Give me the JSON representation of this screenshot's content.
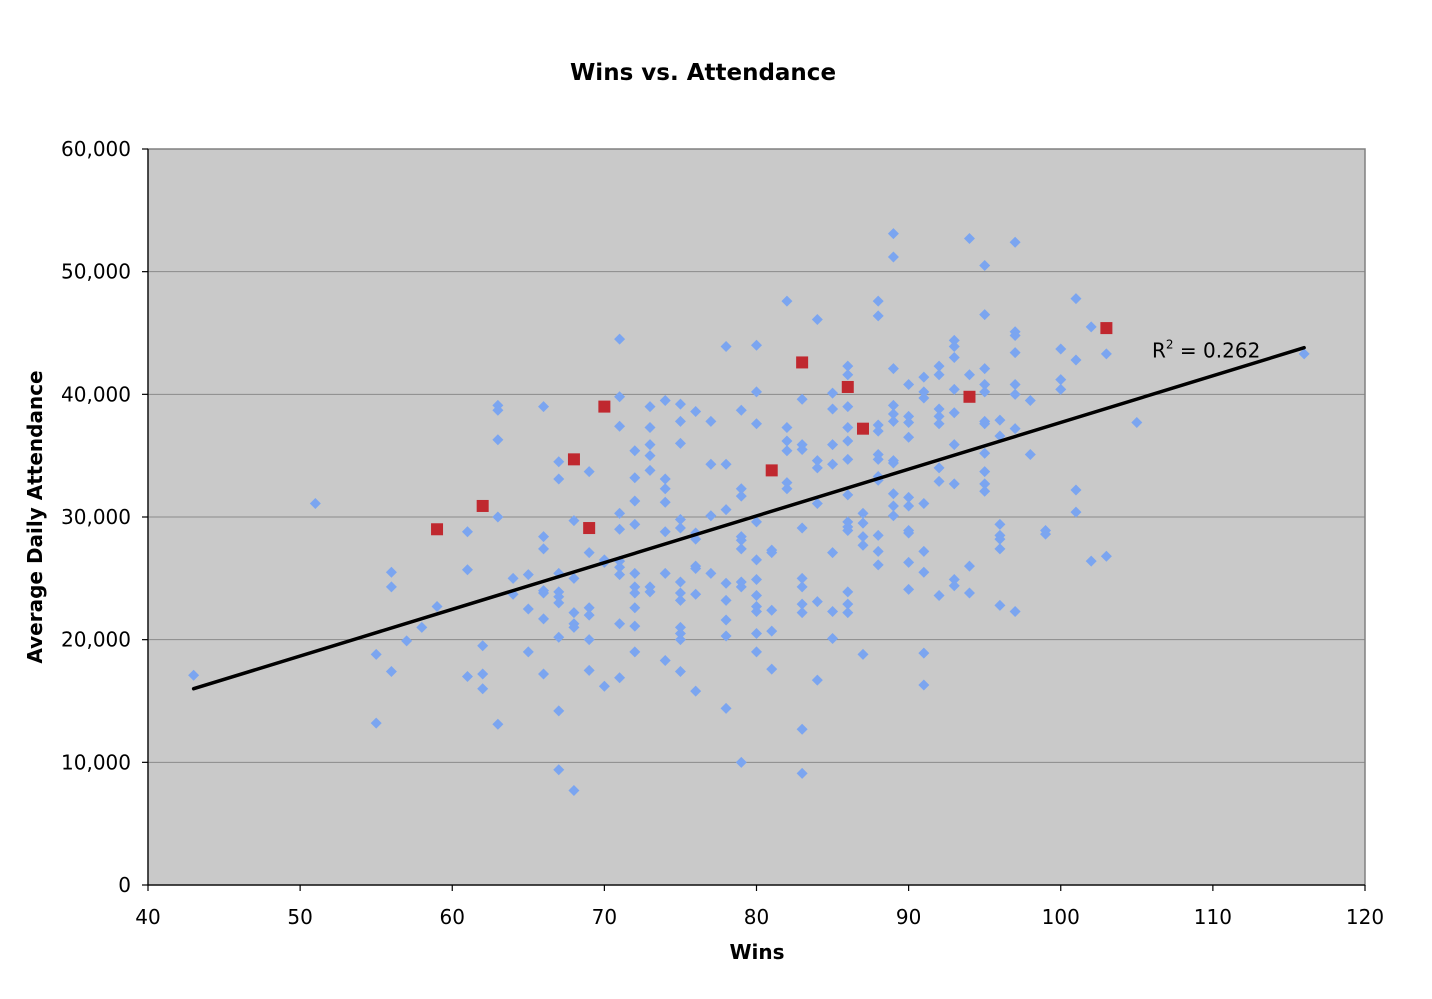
{
  "chart_data": {
    "type": "scatter",
    "title": "Wins vs. Attendance",
    "xlabel": "Wins",
    "ylabel": "Average Daily Attendance",
    "xlim": [
      40,
      120
    ],
    "ylim": [
      0,
      60000
    ],
    "x_ticks": [
      40,
      50,
      60,
      70,
      80,
      90,
      100,
      110,
      120
    ],
    "y_ticks": [
      0,
      10000,
      20000,
      30000,
      40000,
      50000,
      60000
    ],
    "x_tick_labels": [
      "40",
      "50",
      "60",
      "70",
      "80",
      "90",
      "100",
      "110",
      "120"
    ],
    "y_tick_labels": [
      "0",
      "10,000",
      "20,000",
      "30,000",
      "40,000",
      "50,000",
      "60,000"
    ],
    "grid": "horizontal",
    "legend": "none",
    "background": "#c9c9c9",
    "series": [
      {
        "marker": "diamond",
        "color": "#7ba5f0",
        "points": [
          [
            43,
            17100
          ],
          [
            51,
            31100
          ],
          [
            55,
            18800
          ],
          [
            55,
            13200
          ],
          [
            56,
            25500
          ],
          [
            56,
            24300
          ],
          [
            56,
            17400
          ],
          [
            57,
            19900
          ],
          [
            58,
            21000
          ],
          [
            59,
            22700
          ],
          [
            61,
            28800
          ],
          [
            61,
            25700
          ],
          [
            61,
            17000
          ],
          [
            62,
            19500
          ],
          [
            62,
            17200
          ],
          [
            62,
            16000
          ],
          [
            63,
            39100
          ],
          [
            63,
            38700
          ],
          [
            63,
            36300
          ],
          [
            63,
            30000
          ],
          [
            63,
            13100
          ],
          [
            64,
            25000
          ],
          [
            64,
            23700
          ],
          [
            65,
            25300
          ],
          [
            65,
            22500
          ],
          [
            65,
            19000
          ],
          [
            66,
            39000
          ],
          [
            66,
            28400
          ],
          [
            66,
            27400
          ],
          [
            66,
            24000
          ],
          [
            66,
            23800
          ],
          [
            66,
            21700
          ],
          [
            66,
            17200
          ],
          [
            67,
            34500
          ],
          [
            67,
            33100
          ],
          [
            67,
            25400
          ],
          [
            67,
            23900
          ],
          [
            67,
            23500
          ],
          [
            67,
            23000
          ],
          [
            67,
            20200
          ],
          [
            67,
            14200
          ],
          [
            67,
            9400
          ],
          [
            68,
            29700
          ],
          [
            68,
            25000
          ],
          [
            68,
            22200
          ],
          [
            68,
            21300
          ],
          [
            68,
            21000
          ],
          [
            68,
            7700
          ],
          [
            69,
            33700
          ],
          [
            69,
            27100
          ],
          [
            69,
            22600
          ],
          [
            69,
            22000
          ],
          [
            69,
            20000
          ],
          [
            69,
            17500
          ],
          [
            70,
            26500
          ],
          [
            70,
            26300
          ],
          [
            70,
            16200
          ],
          [
            71,
            44500
          ],
          [
            71,
            39800
          ],
          [
            71,
            37400
          ],
          [
            71,
            30300
          ],
          [
            71,
            29000
          ],
          [
            71,
            26400
          ],
          [
            71,
            25900
          ],
          [
            71,
            25300
          ],
          [
            71,
            21300
          ],
          [
            71,
            16900
          ],
          [
            72,
            35400
          ],
          [
            72,
            33200
          ],
          [
            72,
            31300
          ],
          [
            72,
            29400
          ],
          [
            72,
            25400
          ],
          [
            72,
            24300
          ],
          [
            72,
            23800
          ],
          [
            72,
            22600
          ],
          [
            72,
            21100
          ],
          [
            72,
            19000
          ],
          [
            73,
            39000
          ],
          [
            73,
            37300
          ],
          [
            73,
            35900
          ],
          [
            73,
            35000
          ],
          [
            73,
            33800
          ],
          [
            73,
            24300
          ],
          [
            73,
            23900
          ],
          [
            74,
            39500
          ],
          [
            74,
            33100
          ],
          [
            74,
            32300
          ],
          [
            74,
            31200
          ],
          [
            74,
            28800
          ],
          [
            74,
            25400
          ],
          [
            74,
            18300
          ],
          [
            75,
            39200
          ],
          [
            75,
            37800
          ],
          [
            75,
            36000
          ],
          [
            75,
            29800
          ],
          [
            75,
            29100
          ],
          [
            75,
            24700
          ],
          [
            75,
            23800
          ],
          [
            75,
            23200
          ],
          [
            75,
            21000
          ],
          [
            75,
            20500
          ],
          [
            75,
            20000
          ],
          [
            75,
            17400
          ],
          [
            76,
            38600
          ],
          [
            76,
            28700
          ],
          [
            76,
            28200
          ],
          [
            76,
            26000
          ],
          [
            76,
            25800
          ],
          [
            76,
            23700
          ],
          [
            76,
            15800
          ],
          [
            77,
            37800
          ],
          [
            77,
            34300
          ],
          [
            77,
            30100
          ],
          [
            77,
            25400
          ],
          [
            78,
            43900
          ],
          [
            78,
            34300
          ],
          [
            78,
            30600
          ],
          [
            78,
            24600
          ],
          [
            78,
            23200
          ],
          [
            78,
            21600
          ],
          [
            78,
            20300
          ],
          [
            78,
            14400
          ],
          [
            79,
            38700
          ],
          [
            79,
            32300
          ],
          [
            79,
            31700
          ],
          [
            79,
            28400
          ],
          [
            79,
            28100
          ],
          [
            79,
            27400
          ],
          [
            79,
            24700
          ],
          [
            79,
            24300
          ],
          [
            79,
            10000
          ],
          [
            80,
            44000
          ],
          [
            80,
            40200
          ],
          [
            80,
            37600
          ],
          [
            80,
            29600
          ],
          [
            80,
            26500
          ],
          [
            80,
            24900
          ],
          [
            80,
            23600
          ],
          [
            80,
            22700
          ],
          [
            80,
            22300
          ],
          [
            80,
            20500
          ],
          [
            80,
            19000
          ],
          [
            81,
            27300
          ],
          [
            81,
            27100
          ],
          [
            81,
            22400
          ],
          [
            81,
            20700
          ],
          [
            81,
            17600
          ],
          [
            82,
            47600
          ],
          [
            82,
            37300
          ],
          [
            82,
            36200
          ],
          [
            82,
            35400
          ],
          [
            82,
            32800
          ],
          [
            82,
            32300
          ],
          [
            83,
            39600
          ],
          [
            83,
            35900
          ],
          [
            83,
            35500
          ],
          [
            83,
            29100
          ],
          [
            83,
            25000
          ],
          [
            83,
            24300
          ],
          [
            83,
            22900
          ],
          [
            83,
            22200
          ],
          [
            83,
            12700
          ],
          [
            83,
            9100
          ],
          [
            84,
            46100
          ],
          [
            84,
            34600
          ],
          [
            84,
            34000
          ],
          [
            84,
            31100
          ],
          [
            84,
            23100
          ],
          [
            84,
            16700
          ],
          [
            85,
            40100
          ],
          [
            85,
            38800
          ],
          [
            85,
            35900
          ],
          [
            85,
            34300
          ],
          [
            85,
            27100
          ],
          [
            85,
            22300
          ],
          [
            85,
            20100
          ],
          [
            86,
            42300
          ],
          [
            86,
            41600
          ],
          [
            86,
            39000
          ],
          [
            86,
            37300
          ],
          [
            86,
            36200
          ],
          [
            86,
            34700
          ],
          [
            86,
            31800
          ],
          [
            86,
            29600
          ],
          [
            86,
            29200
          ],
          [
            86,
            28900
          ],
          [
            86,
            23900
          ],
          [
            86,
            22900
          ],
          [
            86,
            22200
          ],
          [
            87,
            30300
          ],
          [
            87,
            29500
          ],
          [
            87,
            28400
          ],
          [
            87,
            27700
          ],
          [
            87,
            18800
          ],
          [
            88,
            47600
          ],
          [
            88,
            46400
          ],
          [
            88,
            37500
          ],
          [
            88,
            37000
          ],
          [
            88,
            35100
          ],
          [
            88,
            34700
          ],
          [
            88,
            33300
          ],
          [
            88,
            33000
          ],
          [
            88,
            28500
          ],
          [
            88,
            27200
          ],
          [
            88,
            26100
          ],
          [
            89,
            53100
          ],
          [
            89,
            51200
          ],
          [
            89,
            42100
          ],
          [
            89,
            39100
          ],
          [
            89,
            38400
          ],
          [
            89,
            37800
          ],
          [
            89,
            34600
          ],
          [
            89,
            34400
          ],
          [
            89,
            31900
          ],
          [
            89,
            30900
          ],
          [
            89,
            30100
          ],
          [
            90,
            40800
          ],
          [
            90,
            38200
          ],
          [
            90,
            37700
          ],
          [
            90,
            36500
          ],
          [
            90,
            31600
          ],
          [
            90,
            30900
          ],
          [
            90,
            28900
          ],
          [
            90,
            28700
          ],
          [
            90,
            26300
          ],
          [
            90,
            24100
          ],
          [
            91,
            41400
          ],
          [
            91,
            40200
          ],
          [
            91,
            39700
          ],
          [
            91,
            31100
          ],
          [
            91,
            27200
          ],
          [
            91,
            25500
          ],
          [
            91,
            18900
          ],
          [
            91,
            16300
          ],
          [
            92,
            42300
          ],
          [
            92,
            41600
          ],
          [
            92,
            38800
          ],
          [
            92,
            38200
          ],
          [
            92,
            37600
          ],
          [
            92,
            34000
          ],
          [
            92,
            32900
          ],
          [
            92,
            23600
          ],
          [
            93,
            44400
          ],
          [
            93,
            43900
          ],
          [
            93,
            43000
          ],
          [
            93,
            40400
          ],
          [
            93,
            38500
          ],
          [
            93,
            35900
          ],
          [
            93,
            32700
          ],
          [
            93,
            24900
          ],
          [
            93,
            24400
          ],
          [
            94,
            52700
          ],
          [
            94,
            41600
          ],
          [
            94,
            39800
          ],
          [
            94,
            26000
          ],
          [
            94,
            23800
          ],
          [
            95,
            50500
          ],
          [
            95,
            46500
          ],
          [
            95,
            42100
          ],
          [
            95,
            40800
          ],
          [
            95,
            40200
          ],
          [
            95,
            37800
          ],
          [
            95,
            37600
          ],
          [
            95,
            35200
          ],
          [
            95,
            33700
          ],
          [
            95,
            32700
          ],
          [
            95,
            32100
          ],
          [
            96,
            37900
          ],
          [
            96,
            36600
          ],
          [
            96,
            29400
          ],
          [
            96,
            28500
          ],
          [
            96,
            28200
          ],
          [
            96,
            27400
          ],
          [
            96,
            22800
          ],
          [
            97,
            52400
          ],
          [
            97,
            45100
          ],
          [
            97,
            44800
          ],
          [
            97,
            43400
          ],
          [
            97,
            40800
          ],
          [
            97,
            40000
          ],
          [
            97,
            37200
          ],
          [
            97,
            22300
          ],
          [
            98,
            39500
          ],
          [
            98,
            35100
          ],
          [
            99,
            28900
          ],
          [
            99,
            28600
          ],
          [
            100,
            43700
          ],
          [
            100,
            41200
          ],
          [
            100,
            40400
          ],
          [
            101,
            47800
          ],
          [
            101,
            42800
          ],
          [
            101,
            32200
          ],
          [
            101,
            30400
          ],
          [
            102,
            45500
          ],
          [
            102,
            26400
          ],
          [
            103,
            43300
          ],
          [
            103,
            26800
          ],
          [
            105,
            37700
          ],
          [
            116,
            43300
          ]
        ]
      },
      {
        "marker": "square",
        "color": "#c0282f",
        "points": [
          [
            59,
            29000
          ],
          [
            62,
            30900
          ],
          [
            68,
            34700
          ],
          [
            69,
            29100
          ],
          [
            70,
            39000
          ],
          [
            81,
            33800
          ],
          [
            83,
            42600
          ],
          [
            86,
            40600
          ],
          [
            87,
            37200
          ],
          [
            94,
            39800
          ],
          [
            103,
            45400
          ]
        ]
      }
    ],
    "trendline": {
      "type": "linear",
      "color": "#000000",
      "from": [
        43,
        16000
      ],
      "to": [
        116,
        43800
      ]
    },
    "annotation": {
      "base": "R",
      "superscript": "2",
      "rest": " = 0.262",
      "x": 106,
      "y": 43000
    }
  }
}
